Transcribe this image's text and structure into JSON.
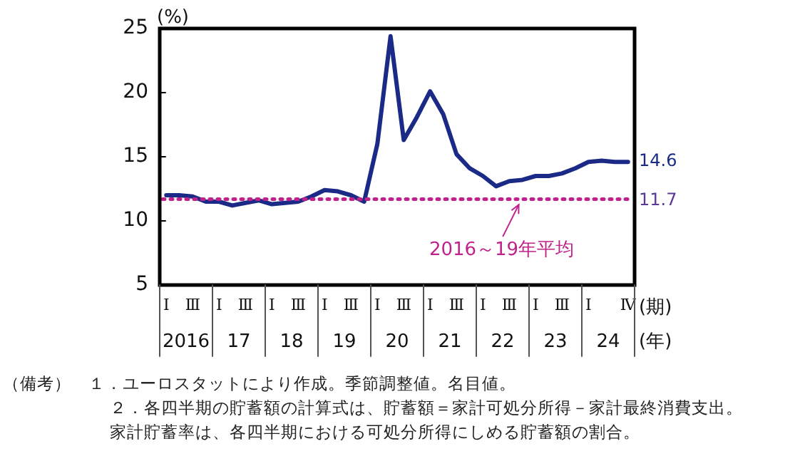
{
  "chart_data": {
    "type": "line",
    "xlabel": "(期)",
    "ylabel": "(%)",
    "categories": [
      "Ⅰ",
      null,
      "Ⅲ",
      null,
      "Ⅰ",
      null,
      "Ⅲ",
      null,
      "Ⅰ",
      null,
      "Ⅲ",
      null,
      "Ⅰ",
      null,
      "Ⅲ",
      null,
      "Ⅰ",
      null,
      "Ⅲ",
      null,
      "Ⅰ",
      null,
      "Ⅲ",
      null,
      "Ⅰ",
      null,
      "Ⅲ",
      null,
      "Ⅰ",
      null,
      "Ⅲ",
      null,
      "Ⅰ",
      null,
      null,
      "Ⅳ"
    ],
    "series": [
      {
        "color": "#1b2a86",
        "values": [
          12.0,
          12.0,
          11.9,
          11.5,
          11.5,
          11.2,
          11.4,
          11.6,
          11.3,
          11.4,
          11.5,
          11.9,
          12.4,
          12.3,
          12.0,
          11.5,
          16.0,
          24.4,
          16.3,
          18.1,
          20.1,
          18.3,
          15.2,
          14.1,
          13.5,
          12.7,
          13.1,
          13.2,
          13.5,
          13.5,
          13.7,
          14.1,
          14.6,
          14.7,
          14.6,
          14.6
        ],
        "value_labels": [
          null,
          null,
          null,
          null,
          null,
          null,
          null,
          null,
          null,
          null,
          null,
          null,
          null,
          null,
          null,
          null,
          null,
          null,
          null,
          null,
          null,
          null,
          null,
          null,
          null,
          null,
          null,
          null,
          null,
          null,
          null,
          null,
          null,
          null,
          null,
          "14.6"
        ]
      }
    ],
    "ylim": [
      5,
      25
    ],
    "yticks": [
      5,
      10,
      15,
      20,
      25
    ],
    "grid": false,
    "legend": false,
    "marker": "none",
    "line_style": "solid",
    "ref_lines": [
      {
        "axis": "y",
        "value": 11.7,
        "label": "11.7",
        "color": "#c0228c",
        "line_style": "dotted"
      }
    ],
    "annotations": [
      "2016",
      "17",
      "18",
      "19",
      "20",
      "21",
      "22",
      "23",
      "24",
      "(年)",
      {
        "text": "2016～19年平均",
        "y": 11.7
      },
      "（備考）　１．ユーロスタットにより作成。季節調整値。名目値。",
      "２．各四半期の貯蓄額の計算式は、貯蓄額＝家計可処分所得－家計最終消費支出。",
      "家計貯蓄率は、各四半期における可処分所得にしめる貯蓄額の割合。"
    ]
  }
}
